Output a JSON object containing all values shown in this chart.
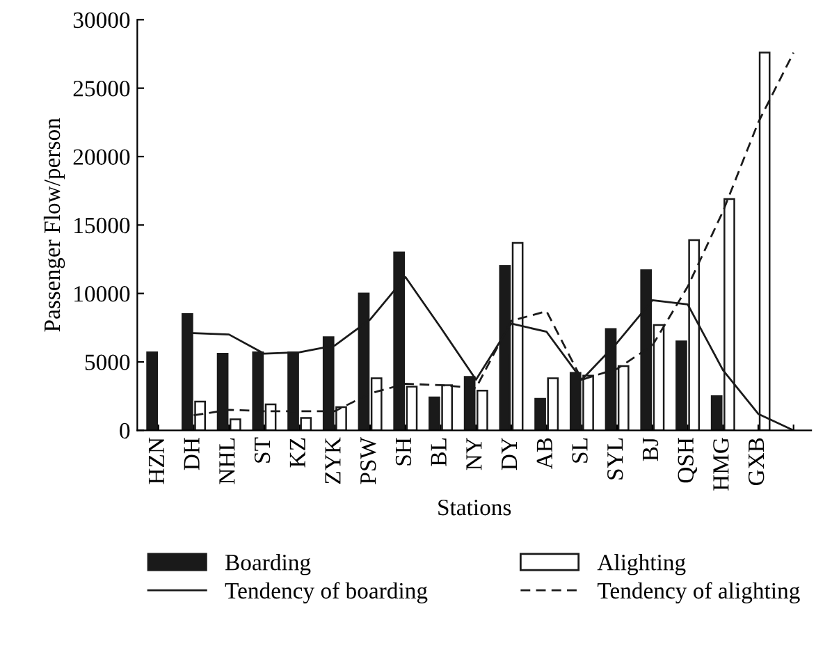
{
  "chart_data": {
    "type": "bar",
    "xlabel": "Stations",
    "ylabel": "Passenger Flow/person",
    "categories": [
      "HZN",
      "DH",
      "NHL",
      "ST",
      "KZ",
      "ZYK",
      "PSW",
      "SH",
      "BL",
      "NY",
      "DY",
      "AB",
      "SL",
      "SYL",
      "BJ",
      "QSH",
      "HMG",
      "GXB",
      null
    ],
    "series": [
      {
        "name": "Boarding",
        "color": "#1a1a1a",
        "values": [
          5700,
          8500,
          5600,
          5700,
          5700,
          6800,
          10000,
          13000,
          2400,
          3900,
          12000,
          2300,
          4200,
          7400,
          11700,
          6500,
          2500,
          null,
          null
        ]
      },
      {
        "name": "Alighting",
        "color": "#ffffff",
        "values": [
          null,
          2100,
          800,
          1900,
          900,
          1700,
          3800,
          3200,
          3300,
          2900,
          13700,
          3800,
          4000,
          4700,
          7700,
          13900,
          16900,
          27600,
          null
        ]
      },
      {
        "name": "Tendency of boarding",
        "type": "line",
        "line_style": "solid",
        "color": "#1a1a1a",
        "values": [
          null,
          7100,
          7000,
          5600,
          5700,
          6200,
          8100,
          11200,
          7500,
          3700,
          7800,
          7200,
          3700,
          6400,
          9500,
          9200,
          4400,
          1200,
          0
        ]
      },
      {
        "name": "Tendency of alighting",
        "type": "line",
        "line_style": "dashed",
        "color": "#1a1a1a",
        "values": [
          null,
          1100,
          1500,
          1400,
          1400,
          1400,
          2700,
          3400,
          3300,
          3100,
          8000,
          8700,
          3700,
          4500,
          6200,
          10500,
          16000,
          22500,
          27600
        ]
      }
    ],
    "ylim": [
      0,
      30000
    ],
    "yticks": [
      0,
      5000,
      10000,
      15000,
      20000,
      25000,
      30000
    ],
    "grid": false,
    "legend": "bottom"
  }
}
